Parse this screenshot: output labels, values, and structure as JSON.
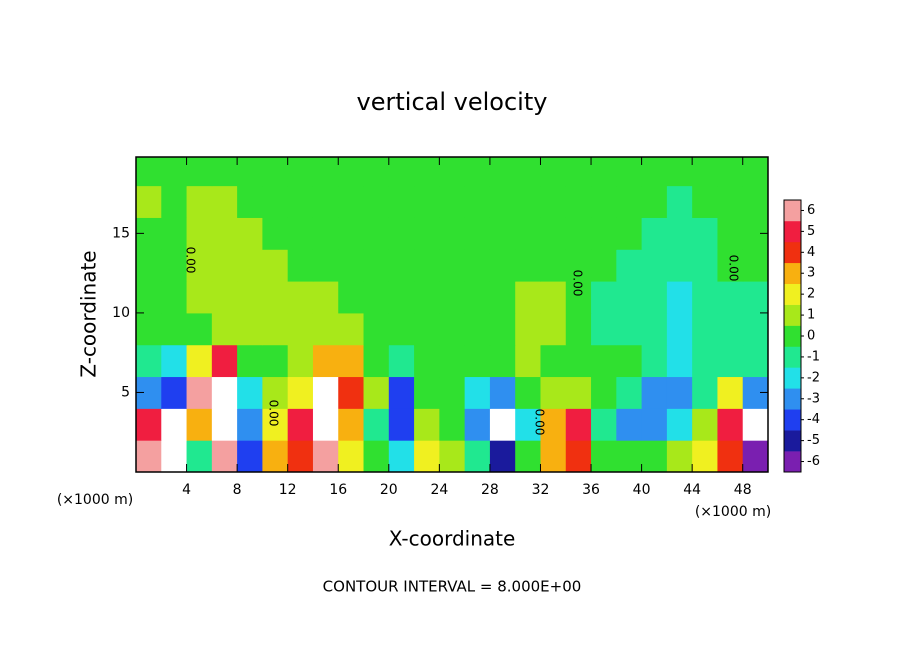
{
  "chart_data": {
    "type": "heatmap",
    "title": "vertical velocity",
    "xlabel": "X-coordinate",
    "ylabel": "Z-coordinate",
    "x_unit": "(×1000 m)",
    "footer": "CONTOUR INTERVAL = 8.000E+00",
    "contour_label": "0.00",
    "xlim": [
      0,
      50
    ],
    "ylim": [
      0,
      19.8
    ],
    "xticks": [
      4,
      8,
      12,
      16,
      20,
      24,
      28,
      32,
      36,
      40,
      44,
      48
    ],
    "yticks": [
      5,
      10,
      15
    ],
    "x": [
      1,
      3,
      5,
      7,
      9,
      11,
      13,
      15,
      17,
      19,
      21,
      23,
      25,
      27,
      29,
      31,
      33,
      35,
      37,
      39,
      41,
      43,
      45,
      47,
      49
    ],
    "y": [
      1,
      3,
      5,
      7,
      9,
      11,
      13,
      15,
      17,
      19
    ],
    "z": [
      [
        6,
        8,
        -1,
        6,
        -4,
        3,
        4,
        6,
        2,
        0,
        -2,
        2,
        1,
        -1,
        -5,
        0,
        3,
        4,
        0,
        0,
        0,
        1,
        2,
        4,
        -6
      ],
      [
        5,
        -7,
        3,
        8,
        -3,
        2,
        5,
        8,
        3,
        -1,
        -4,
        1,
        0,
        -3,
        -7,
        -2,
        3,
        5,
        -1,
        -3,
        -3,
        -2,
        1,
        5,
        -7
      ],
      [
        -3,
        -4,
        6,
        8,
        -2,
        1,
        2,
        8,
        4,
        1,
        -4,
        0,
        0,
        -2,
        -3,
        0,
        1,
        1,
        0,
        -1,
        -3,
        -3,
        -1,
        2,
        -3
      ],
      [
        -1,
        -2,
        2,
        5,
        0,
        0,
        1,
        3,
        3,
        0,
        -1,
        0,
        0,
        0,
        0,
        1,
        0,
        0,
        0,
        0,
        -1,
        -2,
        -1,
        -1,
        -1
      ],
      [
        0,
        0,
        0,
        1,
        1,
        1,
        1,
        1,
        1,
        0,
        0,
        0,
        0,
        0,
        0,
        1,
        1,
        0,
        -1,
        -1,
        -1,
        -2,
        -1,
        -1,
        -1
      ],
      [
        0,
        0,
        1,
        1,
        1,
        1,
        1,
        1,
        0,
        0,
        0,
        0,
        0,
        0,
        0,
        1,
        1,
        0,
        -1,
        -1,
        -1,
        -2,
        -1,
        -1,
        -1
      ],
      [
        0,
        0,
        1,
        1,
        1,
        1,
        0,
        0,
        0,
        0,
        0,
        0,
        0,
        0,
        0,
        0,
        0,
        0,
        0,
        -1,
        -1,
        -1,
        -1,
        0,
        0
      ],
      [
        0,
        0,
        1,
        1,
        1,
        0,
        0,
        0,
        0,
        0,
        0,
        0,
        0,
        0,
        0,
        0,
        0,
        0,
        0,
        0,
        -1,
        -1,
        -1,
        0,
        0
      ],
      [
        1,
        0,
        1,
        1,
        0,
        0,
        0,
        0,
        0,
        0,
        0,
        0,
        0,
        0,
        0,
        0,
        0,
        0,
        0,
        0,
        0,
        -1,
        0,
        0,
        0
      ],
      [
        0,
        0,
        0,
        0,
        0,
        0,
        0,
        0,
        0,
        0,
        0,
        0,
        0,
        0,
        0,
        0,
        0,
        0,
        0,
        0,
        0,
        0,
        0,
        0,
        0
      ]
    ],
    "colorbar_ticks": [
      -6,
      -5,
      -4,
      -3,
      -2,
      -1,
      0,
      1,
      2,
      3,
      4,
      5,
      6
    ],
    "colors": [
      "#7a1fb0",
      "#1a1a9c",
      "#1f3ff0",
      "#2f8ff0",
      "#22e0e8",
      "#20e890",
      "#30e030",
      "#a8e81a",
      "#f0f020",
      "#f8b010",
      "#f03010",
      "#f01e40",
      "#f4a0a0"
    ]
  }
}
